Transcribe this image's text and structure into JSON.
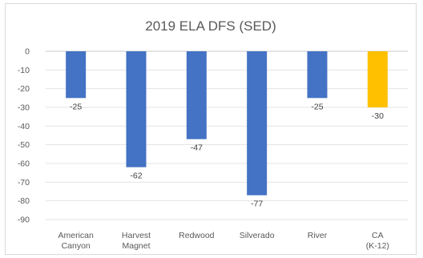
{
  "chart_data": {
    "type": "bar",
    "title": "2019 ELA DFS (SED)",
    "categories": [
      [
        "American",
        "Canyon"
      ],
      [
        "Harvest",
        "Magnet"
      ],
      [
        "Redwood"
      ],
      [
        "Silverado"
      ],
      [
        "River"
      ],
      [
        "CA",
        "(K-12)"
      ]
    ],
    "values": [
      -25,
      -62,
      -47,
      -77,
      -25,
      -30
    ],
    "data_labels": [
      "-25",
      "-62",
      "-47",
      "-77",
      "-25",
      "-30"
    ],
    "bar_colors": [
      "#4472c4",
      "#4472c4",
      "#4472c4",
      "#4472c4",
      "#4472c4",
      "#ffc000"
    ],
    "ylim": [
      -90,
      0
    ],
    "yticks": [
      0,
      -10,
      -20,
      -30,
      -40,
      -50,
      -60,
      -70,
      -80,
      -90
    ],
    "grid": true,
    "xlabel": "",
    "ylabel": ""
  }
}
